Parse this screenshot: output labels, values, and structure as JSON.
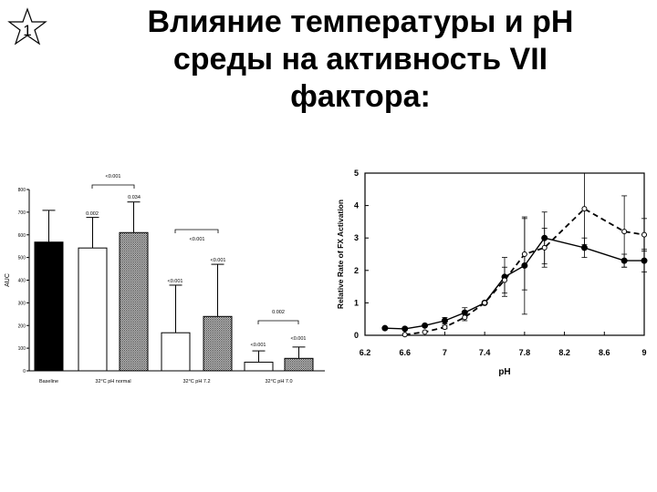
{
  "slide": {
    "badge_number": "1",
    "title_lines": [
      "Влияние температуры и pH",
      "среды на активность VII",
      "фактора:"
    ]
  },
  "chart_data": [
    {
      "type": "bar",
      "xlabel": "",
      "ylabel": "AUC",
      "ylim": [
        0,
        800
      ],
      "yticks": [
        0,
        100,
        200,
        300,
        400,
        500,
        600,
        700,
        800
      ],
      "grid": false,
      "groups": [
        {
          "label": "Baseline",
          "bars": [
            {
              "value": 568,
              "error": 140,
              "fill": "solid"
            }
          ]
        },
        {
          "label": "32°C pH normal",
          "bars": [
            {
              "value": 542,
              "error": 135,
              "fill": "open"
            },
            {
              "value": 610,
              "error": 135,
              "fill": "dotted"
            }
          ]
        },
        {
          "label": "32°C pH 7.2",
          "bars": [
            {
              "value": 168,
              "error": 210,
              "fill": "open"
            },
            {
              "value": 240,
              "error": 230,
              "fill": "dotted"
            }
          ]
        },
        {
          "label": "32°C pH 7.0",
          "bars": [
            {
              "value": 38,
              "error": 50,
              "fill": "open"
            },
            {
              "value": 55,
              "error": 50,
              "fill": "dotted"
            }
          ]
        }
      ],
      "annotations": [
        "<0.001",
        "0.002",
        "0.034",
        "<0.001",
        "<0.001",
        "<0.001",
        "0.002",
        "<0.001",
        "<0.001"
      ]
    },
    {
      "type": "line",
      "xlabel": "pH",
      "ylabel": "Relative Rate of FX Activation",
      "xlim": [
        6.2,
        9
      ],
      "ylim": [
        0,
        5
      ],
      "xticks": [
        "6.2",
        "6.6",
        "7",
        "7.4",
        "7.8",
        "8.2",
        "8.6",
        "9"
      ],
      "yticks": [
        "0",
        "1",
        "2",
        "3",
        "4",
        "5"
      ],
      "grid": false,
      "series": [
        {
          "style": "solid",
          "marker": "filled-circle",
          "x": [
            6.4,
            6.6,
            6.8,
            7.0,
            7.2,
            7.4,
            7.6,
            7.8,
            8.0,
            8.4,
            8.8,
            9.0
          ],
          "y": [
            0.22,
            0.2,
            0.3,
            0.45,
            0.7,
            1.0,
            1.8,
            2.15,
            3.0,
            2.7,
            2.3,
            2.3
          ],
          "err": [
            0,
            0,
            0,
            0.1,
            0.15,
            0,
            0.6,
            1.5,
            0.8,
            0.3,
            0.2,
            0.35
          ]
        },
        {
          "style": "dashed",
          "marker": "open-circle",
          "x": [
            6.6,
            6.8,
            7.0,
            7.2,
            7.4,
            7.6,
            7.8,
            8.0,
            8.4,
            8.8,
            9.0
          ],
          "y": [
            0.02,
            0.1,
            0.25,
            0.55,
            1.0,
            1.7,
            2.5,
            2.7,
            3.9,
            3.2,
            3.1
          ],
          "err": [
            0,
            0,
            0.05,
            0.1,
            0,
            0.4,
            1.1,
            0.6,
            1.1,
            1.1,
            0.5
          ]
        }
      ]
    }
  ]
}
